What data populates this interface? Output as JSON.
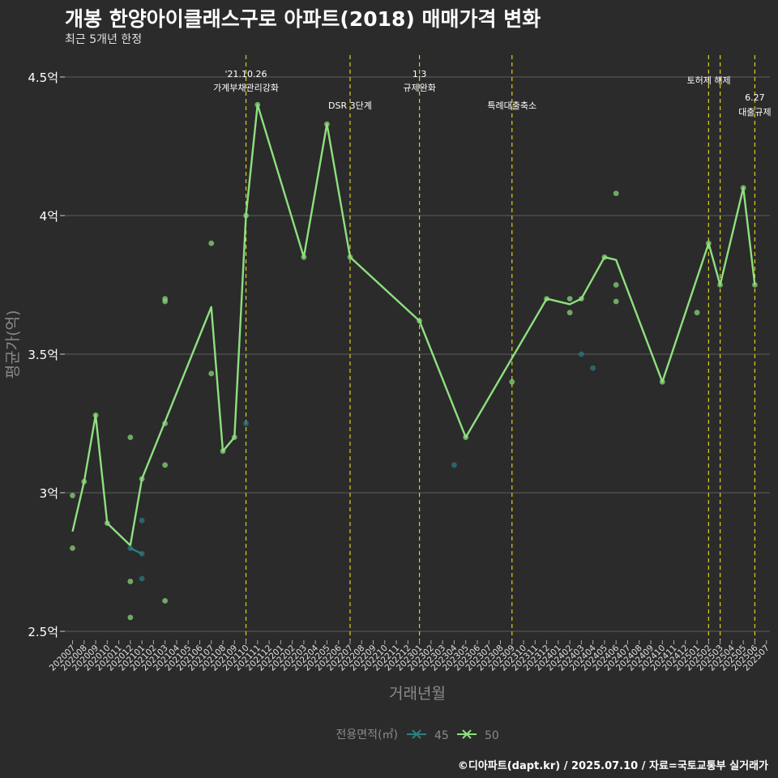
{
  "title": "개봉 한양아이클래스구로 아파트(2018) 매매가격 변화",
  "subtitle": "최근 5개년 한정",
  "caption": "©디아파트(dapt.kr) / 2025.07.10 / 자료=국토교통부 실거래가",
  "colors": {
    "background": "#2b2b2b",
    "grid": "#5e5e5e",
    "series_45": "#2a7f86",
    "series_50": "#8ee07f",
    "event_line": "#d8d020",
    "text": "#ffffff",
    "axis_title": "#8a8a8a"
  },
  "chart_data": {
    "type": "line",
    "xlabel": "거래년월",
    "ylabel": "평균가(억)",
    "ylim": [
      2.5,
      4.5
    ],
    "y_ticks": [
      {
        "value": 2.5,
        "label": "2.5억"
      },
      {
        "value": 3.0,
        "label": "3억"
      },
      {
        "value": 3.5,
        "label": "3.5억"
      },
      {
        "value": 4.0,
        "label": "4억"
      },
      {
        "value": 4.5,
        "label": "4.5억"
      }
    ],
    "categories": [
      "202007",
      "202008",
      "202009",
      "202010",
      "202011",
      "202012",
      "202101",
      "202102",
      "202103",
      "202104",
      "202105",
      "202106",
      "202107",
      "202108",
      "202109",
      "202110",
      "202111",
      "202112",
      "202201",
      "202202",
      "202203",
      "202204",
      "202205",
      "202206",
      "202207",
      "202208",
      "202209",
      "202210",
      "202211",
      "202212",
      "202301",
      "202302",
      "202303",
      "202304",
      "202305",
      "202306",
      "202307",
      "202308",
      "202309",
      "202310",
      "202311",
      "202312",
      "202401",
      "202402",
      "202403",
      "202404",
      "202405",
      "202406",
      "202407",
      "202408",
      "202409",
      "202410",
      "202411",
      "202412",
      "202501",
      "202502",
      "202503",
      "202504",
      "202505",
      "202506",
      "202507"
    ],
    "legend": {
      "title": "전용면적(㎡)",
      "position": "bottom"
    },
    "series": [
      {
        "name": "45",
        "color": "#2a7f86",
        "line": [
          [
            "202012",
            2.8
          ],
          [
            "202101",
            2.78
          ]
        ],
        "points": [
          [
            "202012",
            2.8
          ],
          [
            "202101",
            2.78
          ],
          [
            "202101",
            2.9
          ],
          [
            "202101",
            2.69
          ],
          [
            "202110",
            3.25
          ],
          [
            "202304",
            3.1
          ],
          [
            "202403",
            3.5
          ],
          [
            "202404",
            3.45
          ]
        ]
      },
      {
        "name": "50",
        "color": "#8ee07f",
        "line": [
          [
            "202007",
            2.86
          ],
          [
            "202008",
            3.04
          ],
          [
            "202009",
            3.28
          ],
          [
            "202010",
            2.89
          ],
          [
            "202012",
            2.81
          ],
          [
            "202101",
            3.05
          ],
          [
            "202107",
            3.67
          ],
          [
            "202108",
            3.15
          ],
          [
            "202109",
            3.2
          ],
          [
            "202110",
            4.0
          ],
          [
            "202111",
            4.4
          ],
          [
            "202203",
            3.85
          ],
          [
            "202205",
            4.33
          ],
          [
            "202207",
            3.85
          ],
          [
            "202301",
            3.62
          ],
          [
            "202305",
            3.2
          ],
          [
            "202312",
            3.7
          ],
          [
            "202402",
            3.68
          ],
          [
            "202403",
            3.7
          ],
          [
            "202405",
            3.85
          ],
          [
            "202406",
            3.84
          ],
          [
            "202410",
            3.4
          ],
          [
            "202413",
            3.65
          ],
          [
            "202502",
            3.9
          ],
          [
            "202503",
            3.75
          ],
          [
            "202505",
            4.1
          ],
          [
            "202506",
            3.75
          ]
        ],
        "points": [
          [
            "202007",
            2.99
          ],
          [
            "202007",
            2.8
          ],
          [
            "202008",
            3.04
          ],
          [
            "202009",
            3.28
          ],
          [
            "202010",
            2.89
          ],
          [
            "202012",
            3.2
          ],
          [
            "202012",
            2.68
          ],
          [
            "202012",
            2.55
          ],
          [
            "202101",
            3.05
          ],
          [
            "202103",
            3.7
          ],
          [
            "202103",
            3.69
          ],
          [
            "202103",
            3.25
          ],
          [
            "202103",
            3.1
          ],
          [
            "202103",
            2.61
          ],
          [
            "202107",
            3.9
          ],
          [
            "202107",
            3.43
          ],
          [
            "202108",
            3.15
          ],
          [
            "202109",
            3.2
          ],
          [
            "202110",
            4.0
          ],
          [
            "202111",
            4.4
          ],
          [
            "202203",
            3.85
          ],
          [
            "202205",
            4.33
          ],
          [
            "202207",
            3.85
          ],
          [
            "202301",
            3.62
          ],
          [
            "202305",
            3.2
          ],
          [
            "202309",
            3.4
          ],
          [
            "202312",
            3.7
          ],
          [
            "202402",
            3.7
          ],
          [
            "202402",
            3.65
          ],
          [
            "202403",
            3.7
          ],
          [
            "202405",
            3.85
          ],
          [
            "202406",
            4.08
          ],
          [
            "202406",
            3.75
          ],
          [
            "202406",
            3.69
          ],
          [
            "202410",
            3.4
          ],
          [
            "202501",
            3.65
          ],
          [
            "202502",
            3.9
          ],
          [
            "202503",
            3.75
          ],
          [
            "202505",
            4.1
          ],
          [
            "202506",
            3.75
          ]
        ]
      }
    ],
    "events": [
      {
        "month": "202110",
        "lines": [
          "'21.10.26",
          "가계부채관리강화"
        ],
        "tier": 1
      },
      {
        "month": "202207",
        "lines": [
          "DSR 3단계"
        ],
        "tier": 2
      },
      {
        "month": "202301",
        "lines": [
          "1.3",
          "규제완화"
        ],
        "tier": 1
      },
      {
        "month": "202309",
        "lines": [
          "특례대출축소"
        ],
        "tier": 2
      },
      {
        "month": "202502",
        "lines": [],
        "tier": 1
      },
      {
        "month": "202503",
        "lines": [
          "토허제 해제"
        ],
        "tier": 1
      },
      {
        "month": "202506",
        "lines": [
          "6.27",
          "대출규제"
        ],
        "tier": 3
      }
    ]
  }
}
